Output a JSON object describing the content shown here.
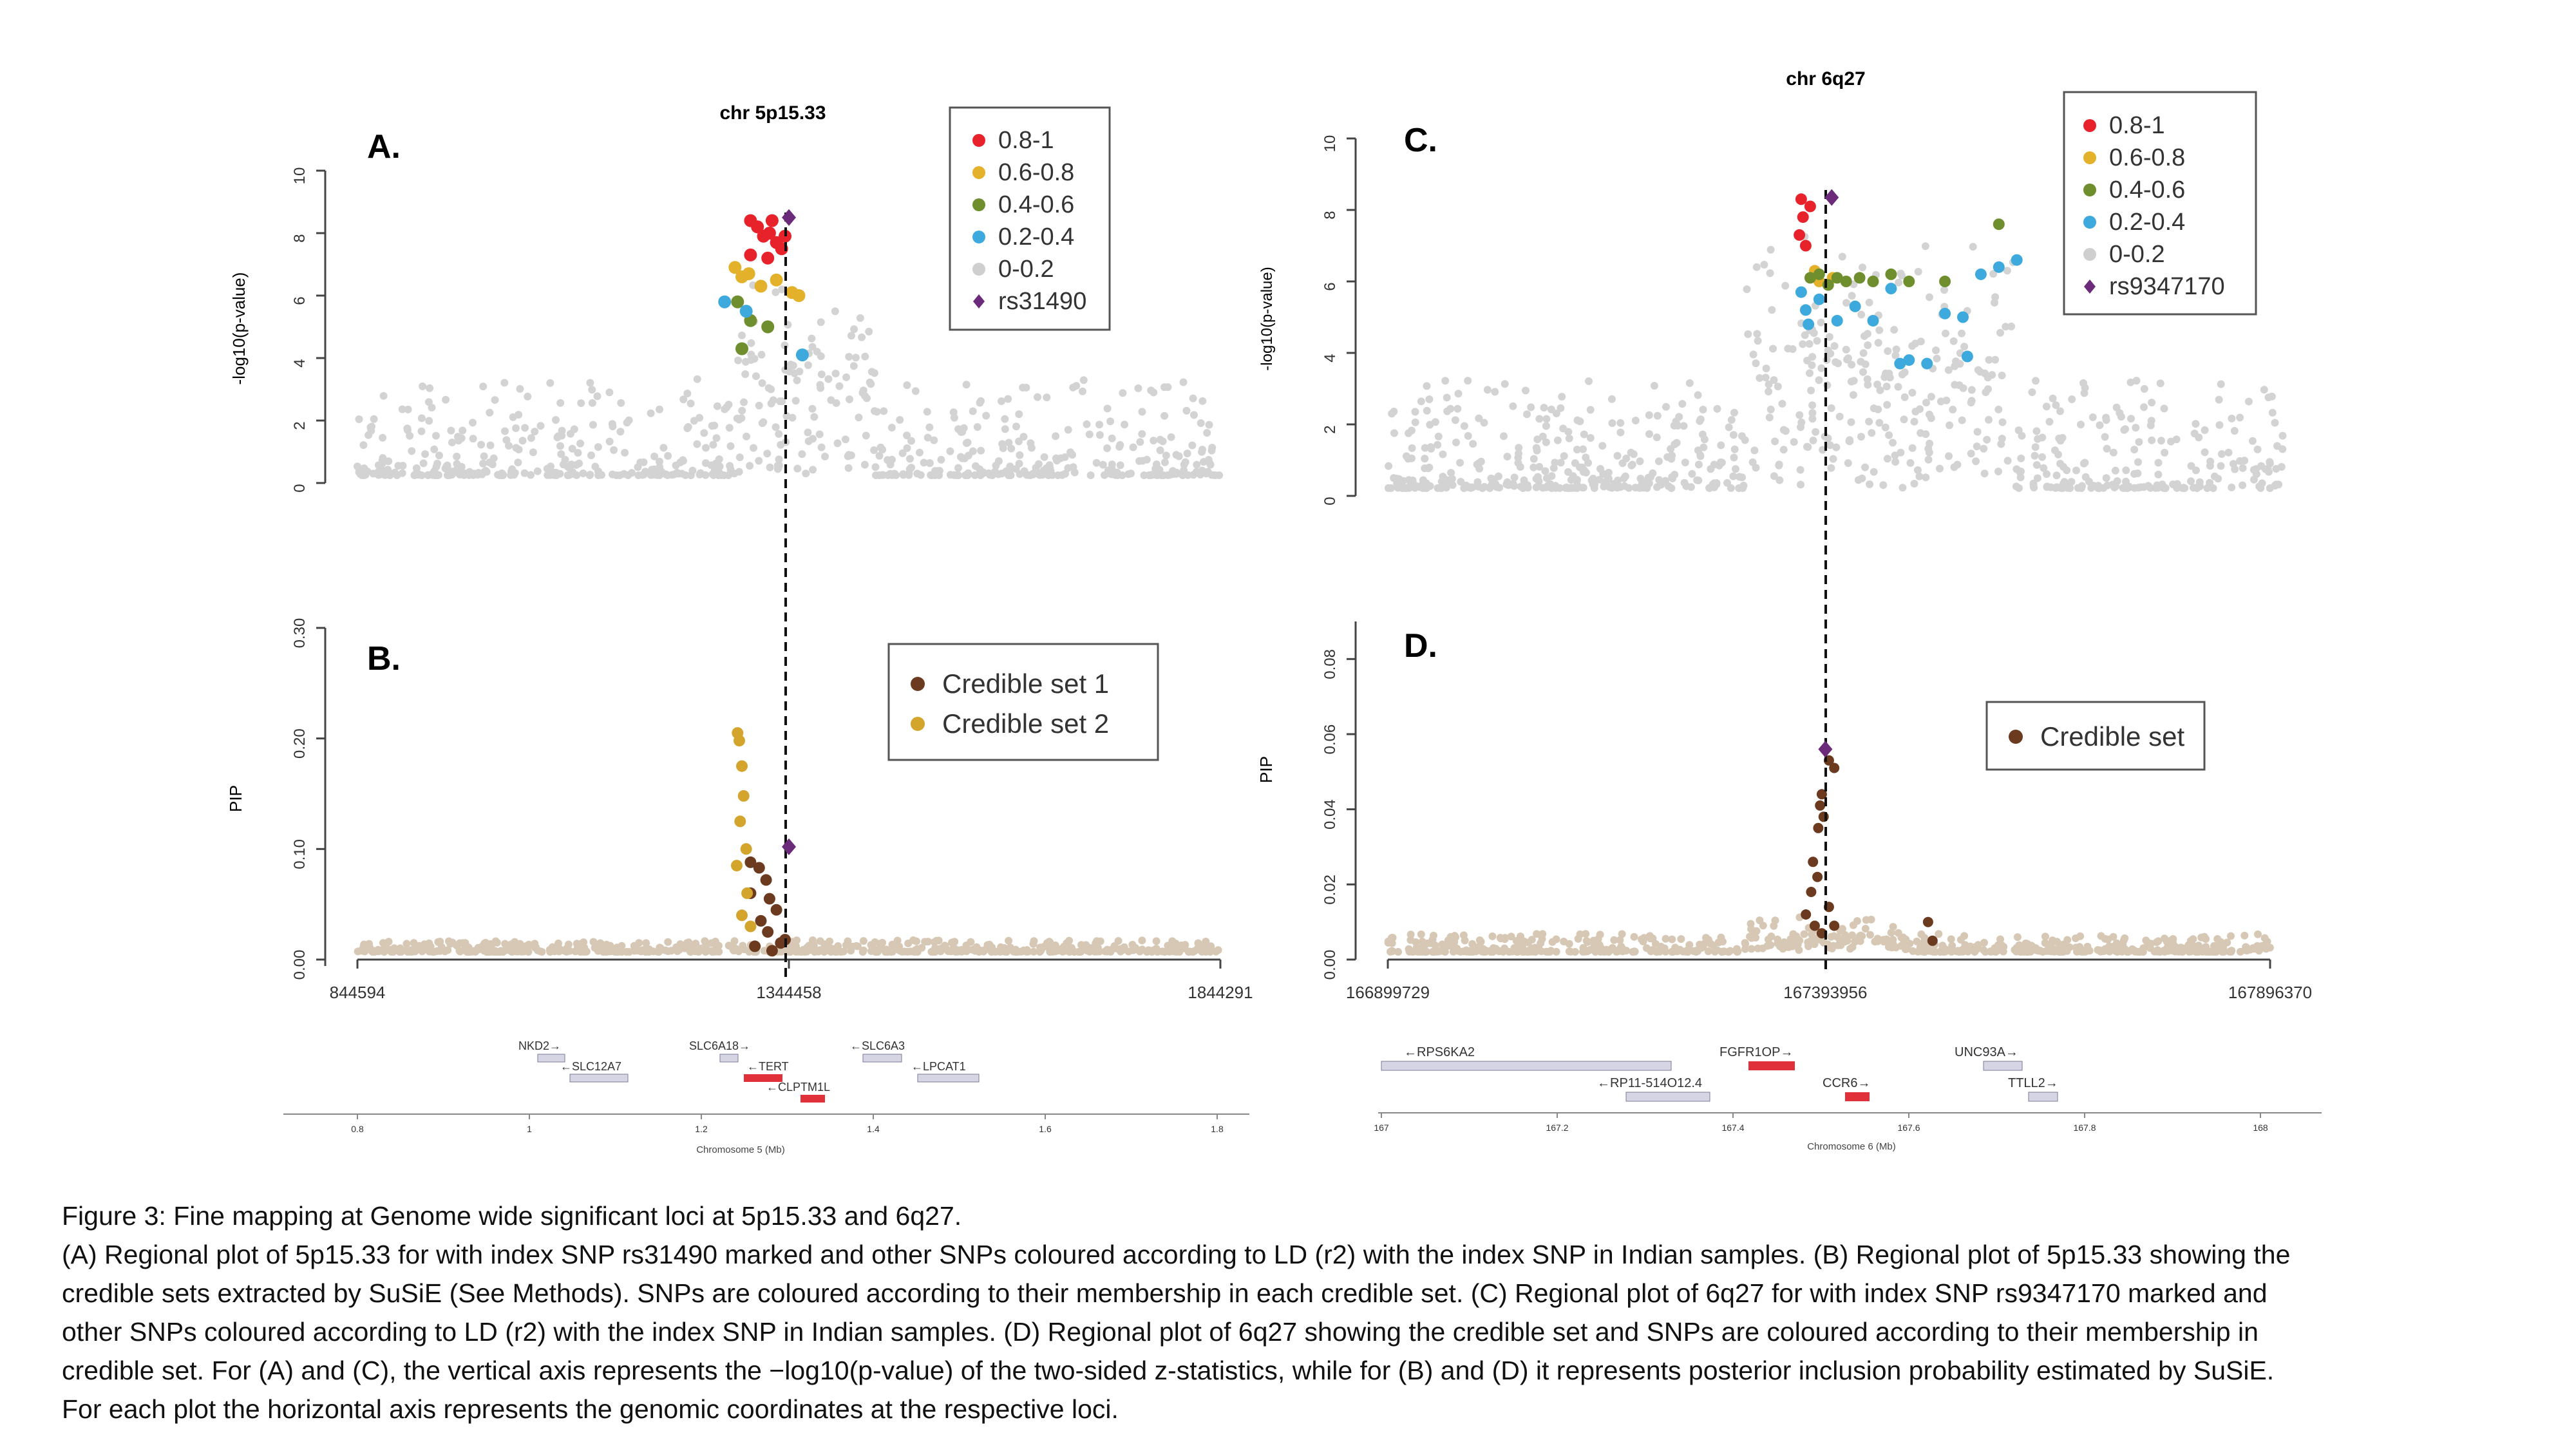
{
  "figure": {
    "panel_labels": [
      "A.",
      "B.",
      "C.",
      "D."
    ],
    "top_titles": [
      "chr 5p15.33",
      "chr 6q27"
    ],
    "legend_ld": {
      "entries": [
        {
          "label": "0.8-1",
          "color": "#e8222b"
        },
        {
          "label": "0.6-0.8",
          "color": "#e3b22a"
        },
        {
          "label": "0.4-0.6",
          "color": "#6f8f2e"
        },
        {
          "label": "0.2-0.4",
          "color": "#3ea9dc"
        },
        {
          "label": "0-0.2",
          "color": "#cfcfcf"
        }
      ],
      "index_A": "rs31490",
      "index_C": "rs9347170",
      "index_color": "#6b2a7a"
    },
    "legend_B": [
      {
        "label": "Credible set 1",
        "color": "#6b3a1f"
      },
      {
        "label": "Credible set 2",
        "color": "#d4a52c"
      }
    ],
    "legend_D": [
      {
        "label": "Credible set",
        "color": "#6b3a1f"
      }
    ],
    "genes_left": [
      "NKD2→",
      "←SLC12A7",
      "SLC6A18→",
      "←TERT",
      "←CLPTM1L",
      "←SLC6A3",
      "←LPCAT1"
    ],
    "genes_right": [
      "←RPS6KA2",
      "←RP11-514O12.4",
      "FGFR1OP→",
      "CCR6→",
      "UNC93A→",
      "TTLL2→"
    ]
  },
  "chart_data": [
    {
      "panel": "A",
      "type": "scatter",
      "title": "chr 5p15.33",
      "ylabel": "-log10(p-value)",
      "ylim": [
        0,
        10
      ],
      "yticks": [
        "0",
        "2",
        "4",
        "6",
        "8",
        "10"
      ],
      "xlim": [
        844594,
        1844291
      ],
      "index_snp": {
        "name": "rs31490",
        "x": 1344458,
        "y": 8.5
      },
      "series": [
        {
          "name": "0.8-1",
          "points": [
            [
              1300000,
              8.4
            ],
            [
              1308000,
              8.2
            ],
            [
              1315000,
              7.9
            ],
            [
              1322000,
              8.0
            ],
            [
              1330000,
              7.7
            ],
            [
              1336000,
              7.5
            ],
            [
              1300000,
              7.3
            ],
            [
              1320000,
              7.2
            ],
            [
              1340000,
              7.9
            ],
            [
              1325000,
              8.4
            ]
          ]
        },
        {
          "name": "0.6-0.8",
          "points": [
            [
              1282000,
              6.9
            ],
            [
              1290000,
              6.6
            ],
            [
              1298000,
              6.7
            ],
            [
              1312000,
              6.3
            ],
            [
              1330000,
              6.5
            ],
            [
              1348000,
              6.1
            ],
            [
              1356000,
              6.0
            ]
          ]
        },
        {
          "name": "0.4-0.6",
          "points": [
            [
              1285000,
              5.8
            ],
            [
              1300000,
              5.2
            ],
            [
              1290000,
              4.3
            ],
            [
              1320000,
              5.0
            ]
          ]
        },
        {
          "name": "0.2-0.4",
          "points": [
            [
              1270000,
              5.8
            ],
            [
              1295000,
              5.5
            ],
            [
              1360000,
              4.1
            ]
          ]
        }
      ]
    },
    {
      "panel": "B",
      "type": "scatter",
      "ylabel": "PIP",
      "ylim": [
        0,
        0.3
      ],
      "yticks": [
        "0.00",
        "0.10",
        "0.20",
        "0.30"
      ],
      "xlim": [
        844594,
        1844291
      ],
      "xticks": [
        "844594",
        "1344458",
        "1844291"
      ],
      "index_snp": {
        "x": 1344458,
        "y": 0.102
      },
      "series": [
        {
          "name": "Credible set 1",
          "points": [
            [
              1300000,
              0.088
            ],
            [
              1310000,
              0.083
            ],
            [
              1318000,
              0.072
            ],
            [
              1322000,
              0.055
            ],
            [
              1330000,
              0.045
            ],
            [
              1300000,
              0.06
            ],
            [
              1312000,
              0.035
            ],
            [
              1320000,
              0.025
            ],
            [
              1335000,
              0.015
            ],
            [
              1305000,
              0.012
            ],
            [
              1325000,
              0.008
            ],
            [
              1340000,
              0.018
            ]
          ]
        },
        {
          "name": "Credible set 2",
          "points": [
            [
              1285000,
              0.205
            ],
            [
              1287000,
              0.198
            ],
            [
              1290000,
              0.175
            ],
            [
              1292000,
              0.148
            ],
            [
              1288000,
              0.125
            ],
            [
              1295000,
              0.1
            ],
            [
              1284000,
              0.085
            ],
            [
              1296000,
              0.06
            ],
            [
              1290000,
              0.04
            ],
            [
              1300000,
              0.03
            ]
          ]
        }
      ]
    },
    {
      "panel": "C",
      "type": "scatter",
      "title": "chr 6q27",
      "ylabel": "-log10(p-value)",
      "ylim": [
        0,
        10
      ],
      "yticks": [
        "0",
        "2",
        "4",
        "6",
        "8",
        "10"
      ],
      "xlim": [
        166899729,
        167896370
      ],
      "index_snp": {
        "name": "rs9347170",
        "x": 167393956,
        "y": 8.35
      },
      "series": [
        {
          "name": "0.8-1",
          "points": [
            [
              167360000,
              8.3
            ],
            [
              167362000,
              7.8
            ],
            [
              167358000,
              7.3
            ],
            [
              167365000,
              7.0
            ],
            [
              167370000,
              8.1
            ]
          ]
        },
        {
          "name": "0.6-0.8",
          "points": [
            [
              167375000,
              6.3
            ],
            [
              167380000,
              6.0
            ],
            [
              167395000,
              6.1
            ]
          ]
        },
        {
          "name": "0.4-0.6",
          "points": [
            [
              167370000,
              6.1
            ],
            [
              167380000,
              6.2
            ],
            [
              167390000,
              5.9
            ],
            [
              167400000,
              6.1
            ],
            [
              167410000,
              6.0
            ],
            [
              167425000,
              6.1
            ],
            [
              167440000,
              6.0
            ],
            [
              167460000,
              6.2
            ],
            [
              167480000,
              6.0
            ],
            [
              167520000,
              6.0
            ],
            [
              167580000,
              7.6
            ]
          ]
        },
        {
          "name": "0.2-0.4",
          "points": [
            [
              167360000,
              5.7
            ],
            [
              167365000,
              5.2
            ],
            [
              167368000,
              4.8
            ],
            [
              167380000,
              5.5
            ],
            [
              167400000,
              4.9
            ],
            [
              167420000,
              5.3
            ],
            [
              167440000,
              4.9
            ],
            [
              167460000,
              5.8
            ],
            [
              167470000,
              3.7
            ],
            [
              167480000,
              3.8
            ],
            [
              167500000,
              3.7
            ],
            [
              167520000,
              5.1
            ],
            [
              167540000,
              5.0
            ],
            [
              167560000,
              6.2
            ],
            [
              167580000,
              6.4
            ],
            [
              167600000,
              6.6
            ],
            [
              167545000,
              3.9
            ]
          ]
        }
      ]
    },
    {
      "panel": "D",
      "type": "scatter",
      "ylabel": "PIP",
      "ylim": [
        0,
        0.09
      ],
      "yticks": [
        "0.00",
        "0.02",
        "0.04",
        "0.06",
        "0.08"
      ],
      "xlim": [
        166899729,
        167896370
      ],
      "xticks": [
        "166899729",
        "167393956",
        "167896370"
      ],
      "index_snp": {
        "x": 167393956,
        "y": 0.056
      },
      "series": [
        {
          "name": "Credible set",
          "points": [
            [
              167398000,
              0.053
            ],
            [
              167404000,
              0.051
            ],
            [
              167390000,
              0.044
            ],
            [
              167388000,
              0.041
            ],
            [
              167392000,
              0.038
            ],
            [
              167386000,
              0.035
            ],
            [
              167380000,
              0.026
            ],
            [
              167385000,
              0.022
            ],
            [
              167378000,
              0.018
            ],
            [
              167372000,
              0.012
            ],
            [
              167382000,
              0.009
            ],
            [
              167390000,
              0.007
            ],
            [
              167398000,
              0.014
            ],
            [
              167404000,
              0.009
            ],
            [
              167510000,
              0.01
            ],
            [
              167515000,
              0.005
            ]
          ]
        }
      ]
    }
  ],
  "gene_tracks": {
    "left": {
      "xlabel": "Chromosome 5 (Mb)",
      "ticks": [
        "0.8",
        "1",
        "1.2",
        "1.4",
        "1.6",
        "1.8"
      ]
    },
    "right": {
      "xlabel": "Chromosome 6 (Mb)",
      "ticks": [
        "167",
        "167.2",
        "167.4",
        "167.6",
        "167.8",
        "168"
      ]
    }
  },
  "caption": {
    "lines": [
      "Figure 3: Fine mapping at Genome wide significant loci at 5p15.33 and 6q27.",
      "(A) Regional plot of 5p15.33 for with index SNP rs31490 marked and other SNPs coloured according to LD (r2) with the index SNP in Indian samples. (B) Regional plot of 5p15.33 showing the",
      "credible sets extracted by SuSiE (See Methods). SNPs are coloured according to their membership in each credible set. (C) Regional plot of 6q27 for with index SNP rs9347170 marked and",
      "other SNPs coloured according to LD (r2) with the index SNP in Indian samples. (D) Regional plot of 6q27 showing the credible set and SNPs are coloured according to their membership in",
      "credible set. For (A) and (C), the vertical axis represents the −log10(p-value) of the two-sided z-statistics, while for (B) and (D) it represents posterior inclusion probability estimated by SuSiE.",
      "For each plot the horizontal axis represents the genomic coordinates at the respective loci."
    ]
  }
}
